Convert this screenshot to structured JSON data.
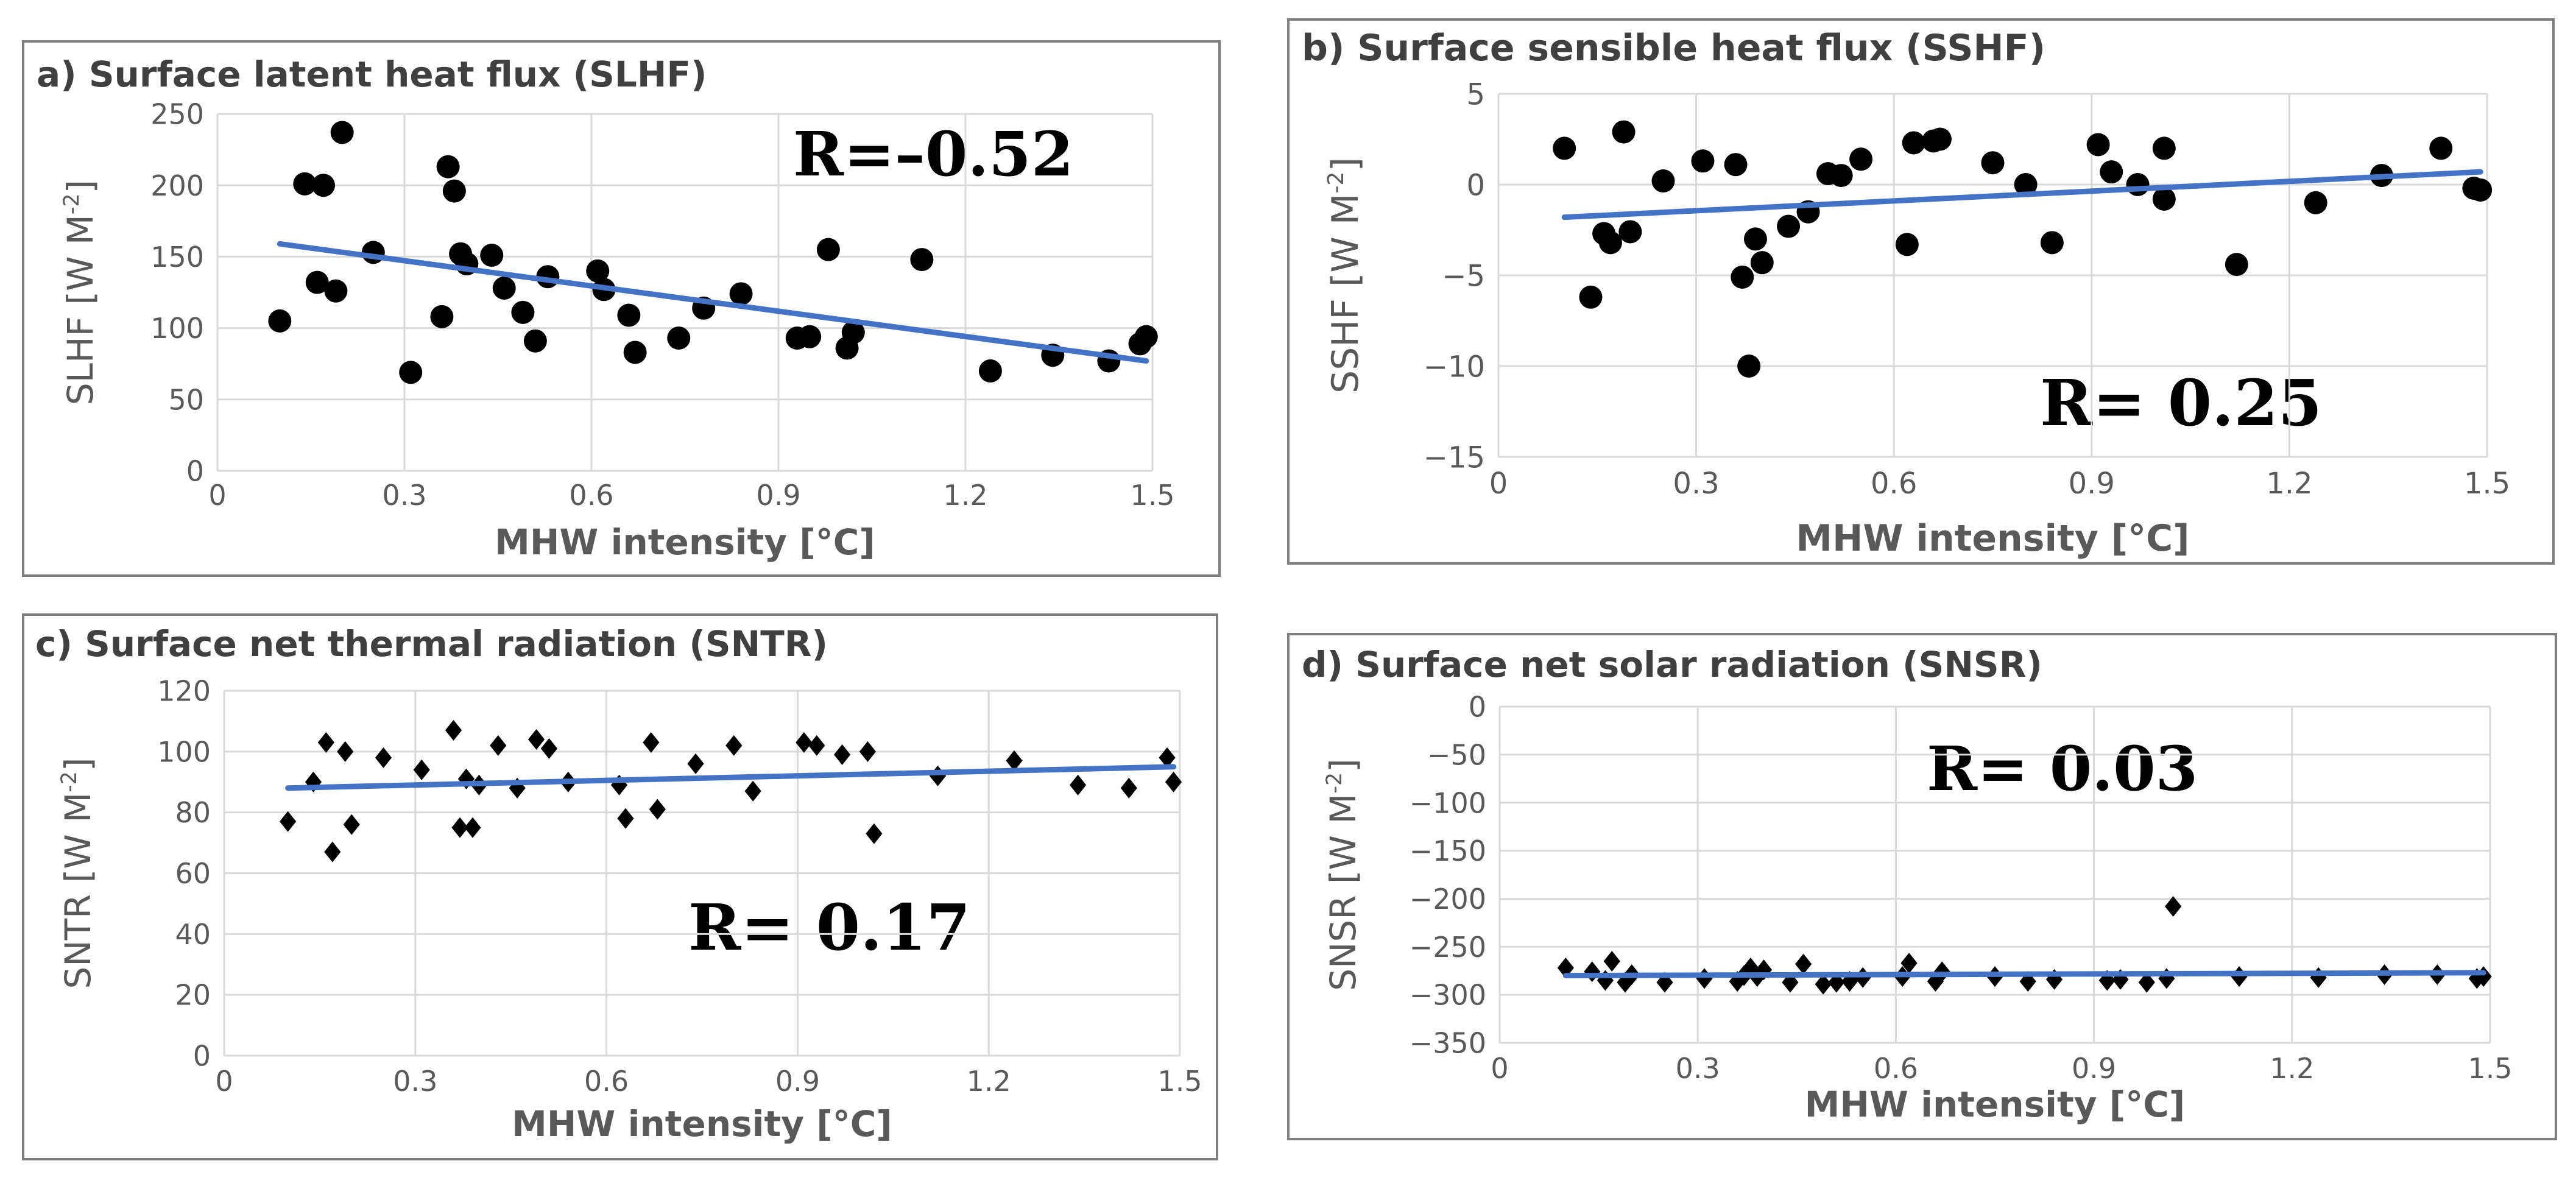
{
  "chart_data": [
    {
      "id": "a",
      "type": "scatter",
      "title": "a) Surface latent heat flux (SLHF)",
      "xlabel": "MHW intensity [°C]",
      "ylabel_main": "SLHF [W M",
      "ylabel_sup": "-2",
      "ylabel_end": "]",
      "annotation": "R=–0.52",
      "xlim": [
        0,
        1.5
      ],
      "ylim": [
        0,
        250
      ],
      "xticks": [
        0,
        0.3,
        0.6,
        0.9,
        1.2,
        1.5
      ],
      "xtick_labels": [
        "0",
        "0.3",
        "0.6",
        "0.9",
        "1.2",
        "1.5"
      ],
      "yticks": [
        0,
        50,
        100,
        150,
        200,
        250
      ],
      "ytick_labels": [
        "0",
        "50",
        "100",
        "150",
        "200",
        "250"
      ],
      "marker": "circle",
      "x": [
        0.1,
        0.14,
        0.16,
        0.17,
        0.19,
        0.2,
        0.25,
        0.31,
        0.36,
        0.37,
        0.38,
        0.39,
        0.4,
        0.44,
        0.46,
        0.49,
        0.51,
        0.53,
        0.61,
        0.62,
        0.66,
        0.67,
        0.74,
        0.78,
        0.84,
        0.93,
        0.95,
        0.98,
        1.01,
        1.02,
        1.13,
        1.24,
        1.34,
        1.43,
        1.48,
        1.49
      ],
      "y": [
        105,
        201,
        132,
        200,
        126,
        237,
        153,
        69,
        108,
        213,
        196,
        152,
        145,
        151,
        128,
        111,
        91,
        136,
        140,
        127,
        109,
        83,
        93,
        114,
        124,
        93,
        94,
        155,
        86,
        97,
        148,
        70,
        81,
        77,
        89,
        94
      ],
      "trend": {
        "x": [
          0.1,
          1.49
        ],
        "y": [
          159,
          77
        ],
        "color": "#4472c4"
      },
      "point_color": "#000000"
    },
    {
      "id": "b",
      "type": "scatter",
      "title": "b) Surface sensible heat flux  (SSHF)",
      "xlabel": "MHW intensity [°C]",
      "ylabel_main": "SSHF [W M",
      "ylabel_sup": "-2",
      "ylabel_end": "]",
      "annotation": "R= 0.25",
      "xlim": [
        0,
        1.5
      ],
      "ylim": [
        -15,
        5
      ],
      "xticks": [
        0,
        0.3,
        0.6,
        0.9,
        1.2,
        1.5
      ],
      "xtick_labels": [
        "0",
        "0.3",
        "0.6",
        "0.9",
        "1.2",
        "1.5"
      ],
      "yticks": [
        -15,
        -10,
        -5,
        0,
        5
      ],
      "ytick_labels": [
        "−15",
        "−10",
        "−5",
        "0",
        "5"
      ],
      "marker": "circle",
      "x": [
        0.1,
        0.14,
        0.16,
        0.17,
        0.19,
        0.2,
        0.25,
        0.31,
        0.36,
        0.37,
        0.38,
        0.39,
        0.4,
        0.44,
        0.47,
        0.5,
        0.52,
        0.55,
        0.62,
        0.63,
        0.66,
        0.67,
        0.75,
        0.8,
        0.84,
        0.91,
        0.93,
        0.97,
        1.01,
        1.01,
        1.12,
        1.24,
        1.34,
        1.43,
        1.48,
        1.49
      ],
      "y": [
        2,
        -6.2,
        -2.7,
        -3.2,
        2.9,
        -2.6,
        0.2,
        1.3,
        1.1,
        -5.1,
        -10,
        -3,
        -4.3,
        -2.3,
        -1.5,
        0.6,
        0.5,
        1.4,
        -3.3,
        2.3,
        2.4,
        2.5,
        1.2,
        0,
        -3.2,
        2.2,
        0.7,
        0,
        2,
        -0.8,
        -4.4,
        -1,
        0.5,
        2,
        -0.2,
        -0.3
      ],
      "trend": {
        "x": [
          0.1,
          1.49
        ],
        "y": [
          -1.8,
          0.7
        ],
        "color": "#4472c4"
      },
      "point_color": "#000000"
    },
    {
      "id": "c",
      "type": "scatter",
      "title": "c) Surface net thermal radiation (SNTR)",
      "xlabel": "MHW intensity [°C]",
      "ylabel_main": "SNTR [W M",
      "ylabel_sup": "-2",
      "ylabel_end": "]",
      "annotation": "R= 0.17",
      "xlim": [
        0,
        1.5
      ],
      "ylim": [
        0,
        120
      ],
      "xticks": [
        0,
        0.3,
        0.6,
        0.9,
        1.2,
        1.5
      ],
      "xtick_labels": [
        "0",
        "0.3",
        "0.6",
        "0.9",
        "1.2",
        "1.5"
      ],
      "yticks": [
        0,
        20,
        40,
        60,
        80,
        100,
        120
      ],
      "ytick_labels": [
        "0",
        "20",
        "40",
        "60",
        "80",
        "100",
        "120"
      ],
      "marker": "diamond",
      "x": [
        0.1,
        0.14,
        0.16,
        0.17,
        0.19,
        0.2,
        0.25,
        0.31,
        0.36,
        0.37,
        0.38,
        0.39,
        0.4,
        0.43,
        0.46,
        0.49,
        0.51,
        0.54,
        0.62,
        0.63,
        0.67,
        0.68,
        0.74,
        0.8,
        0.83,
        0.91,
        0.93,
        0.97,
        1.01,
        1.02,
        1.12,
        1.24,
        1.34,
        1.42,
        1.48,
        1.49
      ],
      "y": [
        77,
        90,
        103,
        67,
        100,
        76,
        98,
        94,
        107,
        75,
        91,
        75,
        89,
        102,
        88,
        104,
        101,
        90,
        89,
        78,
        103,
        81,
        96,
        102,
        87,
        103,
        102,
        99,
        100,
        73,
        92,
        97,
        89,
        88,
        98,
        90
      ],
      "trend": {
        "x": [
          0.1,
          1.49
        ],
        "y": [
          88,
          95
        ],
        "color": "#4472c4"
      },
      "point_color": "#000000"
    },
    {
      "id": "d",
      "type": "scatter",
      "title": "d) Surface net solar radiation (SNSR)",
      "xlabel": "MHW intensity [°C]",
      "ylabel_main": "SNSR [W M",
      "ylabel_sup": "-2",
      "ylabel_end": "]",
      "annotation": "R= 0.03",
      "xlim": [
        0,
        1.5
      ],
      "ylim": [
        -350,
        0
      ],
      "xticks": [
        0,
        0.3,
        0.6,
        0.9,
        1.2,
        1.5
      ],
      "xtick_labels": [
        "0",
        "0.3",
        "0.6",
        "0.9",
        "1.2",
        "1.5"
      ],
      "yticks": [
        -350,
        -300,
        -250,
        -200,
        -150,
        -100,
        -50,
        0
      ],
      "ytick_labels": [
        "−350",
        "−300",
        "−250",
        "−200",
        "−150",
        "−100",
        "−50",
        "0"
      ],
      "marker": "diamond",
      "x": [
        0.1,
        0.14,
        0.16,
        0.17,
        0.19,
        0.2,
        0.25,
        0.31,
        0.36,
        0.37,
        0.38,
        0.39,
        0.4,
        0.44,
        0.46,
        0.49,
        0.51,
        0.53,
        0.55,
        0.61,
        0.62,
        0.66,
        0.67,
        0.75,
        0.8,
        0.84,
        0.92,
        0.94,
        0.98,
        1.01,
        1.02,
        1.12,
        1.24,
        1.34,
        1.42,
        1.48,
        1.49
      ],
      "y": [
        -272,
        -276,
        -285,
        -265,
        -287,
        -279,
        -287,
        -283,
        -286,
        -280,
        -272,
        -281,
        -274,
        -287,
        -268,
        -289,
        -287,
        -286,
        -282,
        -281,
        -267,
        -286,
        -276,
        -281,
        -286,
        -284,
        -285,
        -284,
        -287,
        -283,
        -208,
        -281,
        -282,
        -279,
        -279,
        -283,
        -281
      ],
      "trend": {
        "x": [
          0.1,
          1.49
        ],
        "y": [
          -280,
          -277
        ],
        "color": "#4472c4"
      },
      "point_color": "#000000"
    }
  ]
}
